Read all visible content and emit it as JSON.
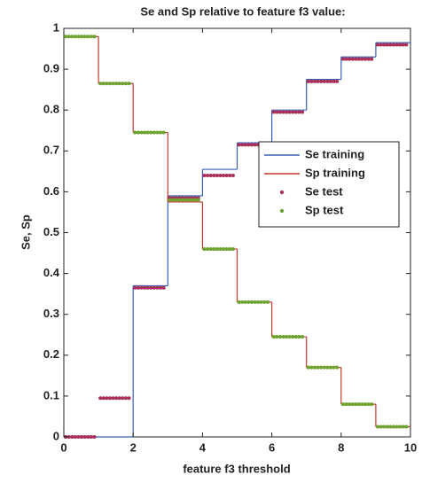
{
  "chart_data": {
    "type": "step",
    "title": "Se and Sp relative to feature f3 value:",
    "x_label": "feature f3 threshold",
    "y_label": "Se, Sp",
    "x": [
      0,
      1,
      2,
      3,
      4,
      5,
      6,
      7,
      8,
      9
    ],
    "series": [
      {
        "name": "Se training",
        "color": "#3b5fb5",
        "style": "line",
        "values": [
          0,
          0,
          0.37,
          0.59,
          0.655,
          0.72,
          0.8,
          0.875,
          0.93,
          0.965
        ]
      },
      {
        "name": "Sp training",
        "color": "#c0392b",
        "style": "line",
        "values": [
          0.98,
          0.865,
          0.745,
          0.575,
          0.46,
          0.33,
          0.245,
          0.17,
          0.08,
          0.025
        ]
      },
      {
        "name": "Se test",
        "color": "#a8305a",
        "style": "dots",
        "values": [
          0,
          0.095,
          0.365,
          0.585,
          0.64,
          0.715,
          0.795,
          0.87,
          0.925,
          0.96
        ]
      },
      {
        "name": "Sp test",
        "color": "#6da32e",
        "style": "dots",
        "values": [
          0.98,
          0.865,
          0.745,
          0.58,
          0.46,
          0.33,
          0.245,
          0.17,
          0.08,
          0.025
        ]
      }
    ],
    "xlim": [
      0,
      10
    ],
    "xticks": [
      0,
      2,
      4,
      6,
      8,
      10
    ],
    "ylim": [
      0,
      1
    ],
    "yticks": [
      0,
      0.1,
      0.2,
      0.3,
      0.4,
      0.5,
      0.6,
      0.7,
      0.8,
      0.9,
      1
    ],
    "grid": false,
    "legend": "upper right"
  }
}
